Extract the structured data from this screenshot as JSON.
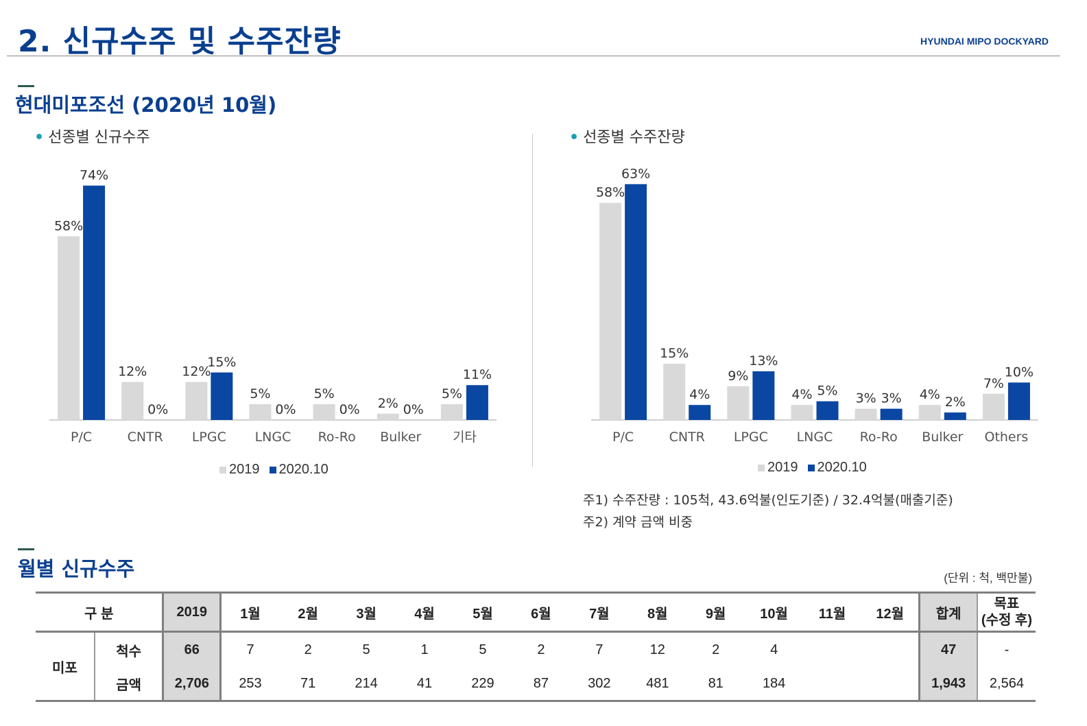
{
  "header": {
    "title": "2. 신규수주 및 수주잔량",
    "company": "HYUNDAI MIPO DOCKYARD"
  },
  "section1": {
    "title": "현대미포조선 (2020년 10월)",
    "left_subtitle": "선종별 신규수주",
    "right_subtitle": "선종별 수주잔량"
  },
  "colors": {
    "s2019": "#d9d9d9",
    "s2020": "#0a47a3",
    "brand": "#0a3f8f"
  },
  "chart_data": [
    {
      "type": "bar",
      "title": "선종별 신규수주",
      "categories": [
        "P/C",
        "CNTR",
        "LPGC",
        "LNGC",
        "Ro-Ro",
        "Bulker",
        "기타"
      ],
      "series": [
        {
          "name": "2019",
          "values": [
            58,
            12,
            12,
            5,
            5,
            2,
            5
          ],
          "labels": [
            "58%",
            "12%",
            "12%",
            "5%",
            "5%",
            "2%",
            "5%"
          ]
        },
        {
          "name": "2020.10",
          "values": [
            74,
            0,
            15,
            0,
            0,
            0,
            11
          ],
          "labels": [
            "74%",
            "0%",
            "15%",
            "0%",
            "0%",
            "0%",
            "11%"
          ]
        }
      ],
      "ylim": [
        0,
        78
      ],
      "unit": "%"
    },
    {
      "type": "bar",
      "title": "선종별 수주잔량",
      "categories": [
        "P/C",
        "CNTR",
        "LPGC",
        "LNGC",
        "Ro-Ro",
        "Bulker",
        "Others"
      ],
      "series": [
        {
          "name": "2019",
          "values": [
            58,
            15,
            9,
            4,
            3,
            4,
            7
          ],
          "labels": [
            "58%",
            "15%",
            "9%",
            "4%",
            "3%",
            "4%",
            "7%"
          ]
        },
        {
          "name": "2020.10",
          "values": [
            63,
            4,
            13,
            5,
            3,
            2,
            10
          ],
          "labels": [
            "63%",
            "4%",
            "13%",
            "5%",
            "3%",
            "2%",
            "10%"
          ]
        }
      ],
      "ylim": [
        0,
        66
      ],
      "unit": "%"
    }
  ],
  "legend": {
    "s2019": "2019",
    "s2020": "2020.10"
  },
  "notes": {
    "note1": "주1) 수주잔량 : 105척, 43.6억불(인도기준) / 32.4억불(매출기준)",
    "note2": "주2) 계약 금액 비중"
  },
  "monthly": {
    "title": "월별 신규수주",
    "unit": "(단위 : 척, 백만불)",
    "headers": {
      "category": "구 분",
      "year": "2019",
      "months": [
        "1월",
        "2월",
        "3월",
        "4월",
        "5월",
        "6월",
        "7월",
        "8월",
        "9월",
        "10월",
        "11월",
        "12월"
      ],
      "total": "합계",
      "target_line1": "목표",
      "target_line2": "(수정 후)"
    },
    "group_label": "미포",
    "rows": [
      {
        "label": "척수",
        "year": "66",
        "months": [
          "7",
          "2",
          "5",
          "1",
          "5",
          "2",
          "7",
          "12",
          "2",
          "4",
          "",
          ""
        ],
        "total": "47",
        "target": "-"
      },
      {
        "label": "금액",
        "year": "2,706",
        "months": [
          "253",
          "71",
          "214",
          "41",
          "229",
          "87",
          "302",
          "481",
          "81",
          "184",
          "",
          ""
        ],
        "total": "1,943",
        "target": "2,564"
      }
    ]
  }
}
